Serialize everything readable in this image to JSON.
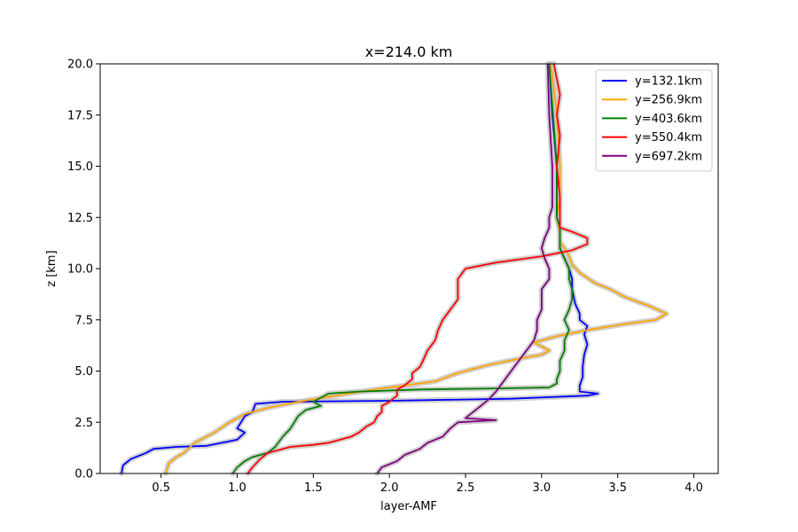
{
  "chart_data": {
    "type": "line",
    "title": "x=214.0 km",
    "xlabel": "layer-AMF",
    "ylabel": "z [km]",
    "xlim": [
      0.1,
      4.16
    ],
    "ylim": [
      0,
      20
    ],
    "xticks": [
      "0.5",
      "1.0",
      "1.5",
      "2.0",
      "2.5",
      "3.0",
      "3.5",
      "4.0"
    ],
    "yticks": [
      "0.0",
      "2.5",
      "5.0",
      "7.5",
      "10.0",
      "12.5",
      "15.0",
      "17.5",
      "20.0"
    ],
    "legend_position": "top-right",
    "grid": false,
    "band_color": "#c8c8c8",
    "series": [
      {
        "name": "y=132.1km",
        "color": "#0000ff",
        "points": [
          [
            0.24,
            0.0
          ],
          [
            0.25,
            0.4
          ],
          [
            0.3,
            0.7
          ],
          [
            0.4,
            1.0
          ],
          [
            0.45,
            1.2
          ],
          [
            0.6,
            1.3
          ],
          [
            0.8,
            1.35
          ],
          [
            0.9,
            1.5
          ],
          [
            1.0,
            1.65
          ],
          [
            1.05,
            2.0
          ],
          [
            1.0,
            2.2
          ],
          [
            1.05,
            2.8
          ],
          [
            1.1,
            3.0
          ],
          [
            1.12,
            3.4
          ],
          [
            1.3,
            3.5
          ],
          [
            2.0,
            3.55
          ],
          [
            2.8,
            3.65
          ],
          [
            3.3,
            3.8
          ],
          [
            3.37,
            3.9
          ],
          [
            3.25,
            4.0
          ],
          [
            3.25,
            4.3
          ],
          [
            3.27,
            4.7
          ],
          [
            3.27,
            5.2
          ],
          [
            3.28,
            5.8
          ],
          [
            3.3,
            6.3
          ],
          [
            3.28,
            6.8
          ],
          [
            3.3,
            7.2
          ],
          [
            3.25,
            7.5
          ],
          [
            3.25,
            7.8
          ],
          [
            3.22,
            8.3
          ],
          [
            3.2,
            9.0
          ],
          [
            3.2,
            9.5
          ],
          [
            3.18,
            10.0
          ],
          [
            3.15,
            10.5
          ],
          [
            3.12,
            11.0
          ],
          [
            3.12,
            11.5
          ],
          [
            3.12,
            12.0
          ],
          [
            3.1,
            12.5
          ],
          [
            3.1,
            13.0
          ],
          [
            3.1,
            15.0
          ],
          [
            3.07,
            17.5
          ],
          [
            3.05,
            20.0
          ]
        ]
      },
      {
        "name": "y=256.9km",
        "color": "#ffa500",
        "points": [
          [
            0.53,
            0.0
          ],
          [
            0.55,
            0.5
          ],
          [
            0.6,
            0.8
          ],
          [
            0.65,
            1.0
          ],
          [
            0.72,
            1.5
          ],
          [
            0.85,
            2.0
          ],
          [
            0.95,
            2.5
          ],
          [
            1.05,
            2.9
          ],
          [
            1.2,
            3.2
          ],
          [
            1.4,
            3.5
          ],
          [
            1.65,
            3.8
          ],
          [
            1.9,
            4.1
          ],
          [
            2.1,
            4.3
          ],
          [
            2.3,
            4.5
          ],
          [
            2.45,
            4.9
          ],
          [
            2.65,
            5.3
          ],
          [
            2.85,
            5.6
          ],
          [
            3.0,
            5.8
          ],
          [
            3.05,
            6.0
          ],
          [
            3.0,
            6.2
          ],
          [
            2.95,
            6.4
          ],
          [
            3.1,
            6.7
          ],
          [
            3.3,
            7.0
          ],
          [
            3.55,
            7.3
          ],
          [
            3.75,
            7.5
          ],
          [
            3.82,
            7.8
          ],
          [
            3.7,
            8.2
          ],
          [
            3.55,
            8.6
          ],
          [
            3.45,
            9.0
          ],
          [
            3.35,
            9.3
          ],
          [
            3.25,
            9.8
          ],
          [
            3.2,
            10.2
          ],
          [
            3.18,
            10.6
          ],
          [
            3.15,
            11.0
          ],
          [
            3.12,
            11.3
          ],
          [
            3.12,
            11.8
          ],
          [
            3.1,
            12.5
          ],
          [
            3.12,
            13.5
          ],
          [
            3.12,
            15.0
          ],
          [
            3.1,
            17.5
          ],
          [
            3.06,
            20.0
          ]
        ]
      },
      {
        "name": "y=403.6km",
        "color": "#008000",
        "points": [
          [
            0.97,
            0.0
          ],
          [
            1.0,
            0.3
          ],
          [
            1.05,
            0.6
          ],
          [
            1.1,
            0.8
          ],
          [
            1.2,
            1.0
          ],
          [
            1.25,
            1.3
          ],
          [
            1.3,
            1.8
          ],
          [
            1.35,
            2.2
          ],
          [
            1.4,
            2.8
          ],
          [
            1.45,
            3.1
          ],
          [
            1.55,
            3.3
          ],
          [
            1.5,
            3.5
          ],
          [
            1.55,
            3.7
          ],
          [
            1.6,
            3.9
          ],
          [
            1.8,
            4.0
          ],
          [
            2.2,
            4.1
          ],
          [
            2.7,
            4.15
          ],
          [
            3.05,
            4.2
          ],
          [
            3.1,
            4.4
          ],
          [
            3.1,
            4.6
          ],
          [
            3.12,
            5.0
          ],
          [
            3.12,
            5.5
          ],
          [
            3.15,
            6.0
          ],
          [
            3.15,
            6.5
          ],
          [
            3.18,
            7.0
          ],
          [
            3.15,
            7.5
          ],
          [
            3.18,
            8.0
          ],
          [
            3.2,
            8.5
          ],
          [
            3.2,
            9.0
          ],
          [
            3.18,
            9.5
          ],
          [
            3.18,
            10.0
          ],
          [
            3.15,
            10.5
          ],
          [
            3.12,
            11.0
          ],
          [
            3.12,
            11.5
          ],
          [
            3.12,
            12.0
          ],
          [
            3.1,
            12.5
          ],
          [
            3.1,
            13.0
          ],
          [
            3.1,
            15.0
          ],
          [
            3.08,
            17.0
          ],
          [
            3.05,
            20.0
          ]
        ]
      },
      {
        "name": "y=550.4km",
        "color": "#ff0000",
        "points": [
          [
            1.07,
            0.0
          ],
          [
            1.1,
            0.3
          ],
          [
            1.15,
            0.7
          ],
          [
            1.2,
            1.0
          ],
          [
            1.35,
            1.3
          ],
          [
            1.5,
            1.4
          ],
          [
            1.6,
            1.5
          ],
          [
            1.75,
            1.8
          ],
          [
            1.8,
            2.0
          ],
          [
            1.85,
            2.3
          ],
          [
            1.9,
            2.5
          ],
          [
            1.92,
            2.8
          ],
          [
            1.95,
            3.0
          ],
          [
            1.95,
            3.3
          ],
          [
            2.0,
            3.5
          ],
          [
            2.05,
            3.8
          ],
          [
            2.05,
            4.1
          ],
          [
            2.1,
            4.3
          ],
          [
            2.15,
            4.6
          ],
          [
            2.15,
            4.9
          ],
          [
            2.2,
            5.2
          ],
          [
            2.22,
            5.5
          ],
          [
            2.25,
            6.0
          ],
          [
            2.3,
            6.5
          ],
          [
            2.32,
            7.0
          ],
          [
            2.35,
            7.5
          ],
          [
            2.4,
            8.0
          ],
          [
            2.45,
            8.5
          ],
          [
            2.45,
            9.0
          ],
          [
            2.45,
            9.5
          ],
          [
            2.5,
            10.0
          ],
          [
            2.7,
            10.3
          ],
          [
            3.0,
            10.6
          ],
          [
            3.2,
            10.9
          ],
          [
            3.3,
            11.2
          ],
          [
            3.3,
            11.5
          ],
          [
            3.2,
            11.8
          ],
          [
            3.12,
            12.0
          ],
          [
            3.12,
            12.5
          ],
          [
            3.12,
            13.5
          ],
          [
            3.1,
            15.0
          ],
          [
            3.12,
            16.5
          ],
          [
            3.1,
            17.5
          ],
          [
            3.12,
            18.5
          ],
          [
            3.08,
            20.0
          ]
        ]
      },
      {
        "name": "y=697.2km",
        "color": "#800080",
        "points": [
          [
            1.92,
            0.0
          ],
          [
            1.95,
            0.3
          ],
          [
            2.05,
            0.6
          ],
          [
            2.1,
            0.9
          ],
          [
            2.2,
            1.2
          ],
          [
            2.25,
            1.5
          ],
          [
            2.35,
            1.8
          ],
          [
            2.4,
            2.2
          ],
          [
            2.45,
            2.5
          ],
          [
            2.7,
            2.6
          ],
          [
            2.5,
            2.7
          ],
          [
            2.55,
            3.0
          ],
          [
            2.6,
            3.3
          ],
          [
            2.65,
            3.6
          ],
          [
            2.7,
            4.0
          ],
          [
            2.75,
            4.5
          ],
          [
            2.8,
            5.0
          ],
          [
            2.85,
            5.5
          ],
          [
            2.9,
            6.0
          ],
          [
            2.95,
            6.5
          ],
          [
            2.97,
            7.0
          ],
          [
            2.97,
            7.5
          ],
          [
            3.0,
            8.0
          ],
          [
            3.0,
            8.5
          ],
          [
            3.0,
            9.0
          ],
          [
            3.05,
            9.5
          ],
          [
            3.05,
            10.0
          ],
          [
            3.02,
            10.5
          ],
          [
            3.0,
            11.0
          ],
          [
            3.02,
            11.5
          ],
          [
            3.05,
            12.0
          ],
          [
            3.05,
            12.5
          ],
          [
            3.07,
            13.0
          ],
          [
            3.07,
            15.0
          ],
          [
            3.05,
            17.5
          ],
          [
            3.04,
            20.0
          ]
        ]
      }
    ]
  }
}
